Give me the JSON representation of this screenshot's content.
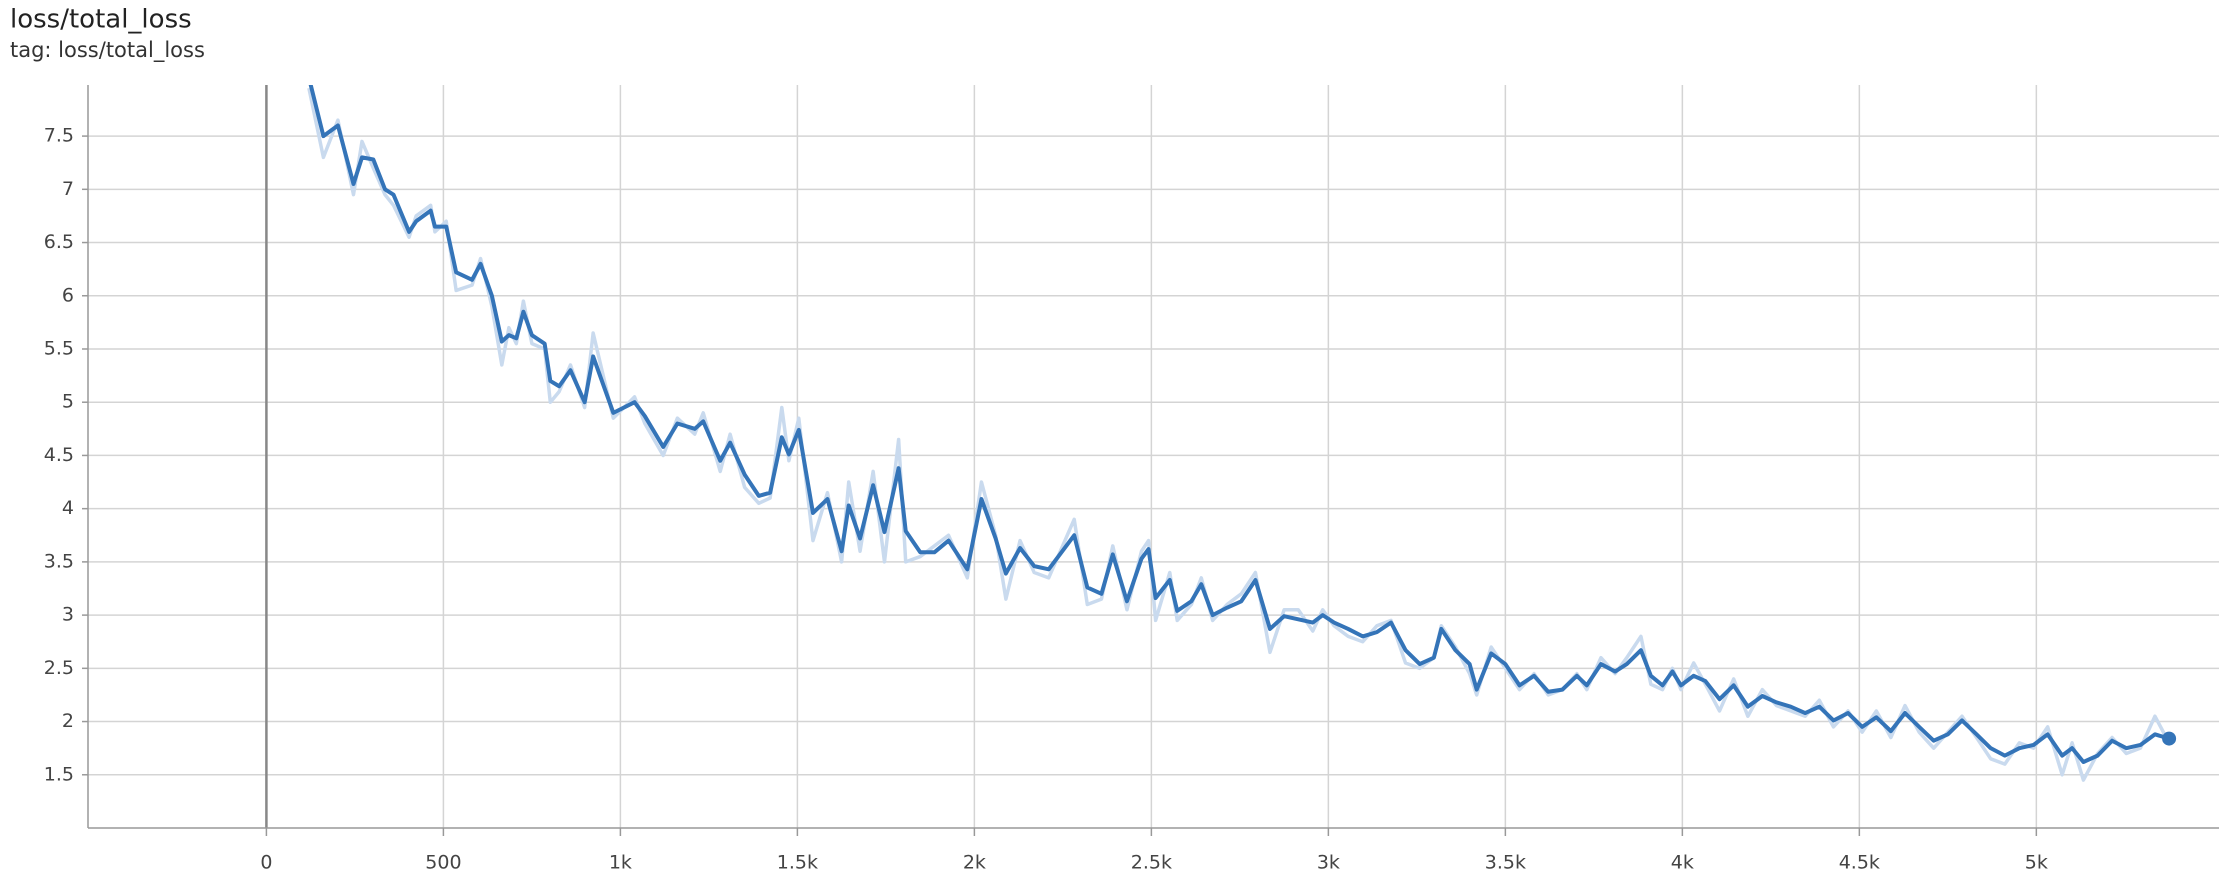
{
  "chart_data": {
    "type": "line",
    "title": "loss/total_loss",
    "subtitle": "tag: loss/total_loss",
    "x": [
      120,
      161,
      202,
      246,
      270,
      302,
      335,
      359,
      403,
      423,
      464,
      476,
      508,
      536,
      581,
      605,
      637,
      665,
      685,
      706,
      726,
      750,
      786,
      802,
      827,
      859,
      899,
      923,
      980,
      1040,
      1069,
      1121,
      1161,
      1210,
      1234,
      1282,
      1310,
      1351,
      1391,
      1423,
      1456,
      1476,
      1504,
      1544,
      1585,
      1625,
      1645,
      1677,
      1714,
      1746,
      1786,
      1806,
      1847,
      1887,
      1927,
      1980,
      2020,
      2060,
      2089,
      2129,
      2169,
      2210,
      2282,
      2319,
      2359,
      2391,
      2431,
      2472,
      2492,
      2512,
      2552,
      2573,
      2613,
      2641,
      2673,
      2714,
      2754,
      2794,
      2835,
      2875,
      2915,
      2956,
      2984,
      3016,
      3056,
      3097,
      3137,
      3177,
      3218,
      3258,
      3298,
      3319,
      3359,
      3399,
      3419,
      3460,
      3500,
      3540,
      3581,
      3621,
      3661,
      3702,
      3730,
      3770,
      3810,
      3843,
      3883,
      3911,
      3944,
      3972,
      3996,
      4032,
      4065,
      4105,
      4145,
      4185,
      4226,
      4266,
      4306,
      4347,
      4387,
      4427,
      4468,
      4508,
      4548,
      4589,
      4629,
      4669,
      4710,
      4750,
      4790,
      4831,
      4871,
      4911,
      4952,
      4992,
      5032,
      5073,
      5101,
      5133,
      5173,
      5214,
      5254,
      5294,
      5335,
      5375
    ],
    "series": [
      {
        "color": "#c9daee",
        "values": [
          7.95,
          7.3,
          7.65,
          6.95,
          7.45,
          7.2,
          6.95,
          6.85,
          6.55,
          6.75,
          6.85,
          6.6,
          6.7,
          6.05,
          6.1,
          6.35,
          5.9,
          5.35,
          5.7,
          5.55,
          5.95,
          5.55,
          5.5,
          5.0,
          5.1,
          5.35,
          4.95,
          5.65,
          4.85,
          5.05,
          4.8,
          4.5,
          4.85,
          4.7,
          4.9,
          4.35,
          4.7,
          4.2,
          4.05,
          4.1,
          4.95,
          4.45,
          4.85,
          3.7,
          4.15,
          3.5,
          4.25,
          3.6,
          4.35,
          3.5,
          4.65,
          3.5,
          3.55,
          3.65,
          3.75,
          3.35,
          4.25,
          3.75,
          3.15,
          3.7,
          3.4,
          3.35,
          3.9,
          3.1,
          3.15,
          3.65,
          3.05,
          3.6,
          3.7,
          2.95,
          3.4,
          2.95,
          3.1,
          3.35,
          2.95,
          3.1,
          3.2,
          3.4,
          2.65,
          3.05,
          3.05,
          2.85,
          3.05,
          2.9,
          2.8,
          2.75,
          2.9,
          2.95,
          2.55,
          2.5,
          2.6,
          2.9,
          2.7,
          2.45,
          2.25,
          2.7,
          2.5,
          2.3,
          2.45,
          2.25,
          2.3,
          2.45,
          2.3,
          2.6,
          2.45,
          2.6,
          2.8,
          2.35,
          2.3,
          2.5,
          2.3,
          2.55,
          2.35,
          2.1,
          2.4,
          2.05,
          2.3,
          2.15,
          2.1,
          2.05,
          2.2,
          1.95,
          2.1,
          1.9,
          2.1,
          1.85,
          2.15,
          1.9,
          1.75,
          1.9,
          2.05,
          1.85,
          1.65,
          1.6,
          1.8,
          1.75,
          1.95,
          1.5,
          1.8,
          1.45,
          1.7,
          1.85,
          1.7,
          1.75,
          2.05,
          1.8
        ]
      },
      {
        "color": "#3474b8",
        "values": [
          8.05,
          7.5,
          7.6,
          7.05,
          7.3,
          7.28,
          7.0,
          6.95,
          6.6,
          6.7,
          6.8,
          6.65,
          6.65,
          6.22,
          6.15,
          6.3,
          6.0,
          5.57,
          5.63,
          5.6,
          5.85,
          5.63,
          5.55,
          5.2,
          5.15,
          5.3,
          5.0,
          5.43,
          4.9,
          5.0,
          4.87,
          4.58,
          4.8,
          4.75,
          4.82,
          4.45,
          4.62,
          4.32,
          4.12,
          4.15,
          4.67,
          4.51,
          4.74,
          3.96,
          4.09,
          3.6,
          4.03,
          3.72,
          4.22,
          3.78,
          4.38,
          3.79,
          3.59,
          3.59,
          3.7,
          3.43,
          4.09,
          3.72,
          3.39,
          3.63,
          3.46,
          3.43,
          3.75,
          3.26,
          3.2,
          3.57,
          3.13,
          3.53,
          3.62,
          3.16,
          3.33,
          3.04,
          3.13,
          3.29,
          3.0,
          3.07,
          3.13,
          3.33,
          2.87,
          2.99,
          2.96,
          2.93,
          3.0,
          2.93,
          2.87,
          2.8,
          2.84,
          2.93,
          2.67,
          2.54,
          2.6,
          2.87,
          2.67,
          2.54,
          2.3,
          2.64,
          2.54,
          2.34,
          2.43,
          2.28,
          2.3,
          2.43,
          2.34,
          2.54,
          2.47,
          2.54,
          2.67,
          2.43,
          2.34,
          2.47,
          2.34,
          2.43,
          2.38,
          2.21,
          2.34,
          2.14,
          2.24,
          2.18,
          2.14,
          2.08,
          2.14,
          2.01,
          2.08,
          1.95,
          2.04,
          1.91,
          2.08,
          1.95,
          1.82,
          1.88,
          2.01,
          1.88,
          1.75,
          1.68,
          1.75,
          1.78,
          1.88,
          1.68,
          1.75,
          1.62,
          1.68,
          1.82,
          1.75,
          1.78,
          1.88,
          1.84
        ]
      }
    ],
    "xlim": [
      -504,
      5516
    ],
    "ylim": [
      1,
      7.98
    ],
    "xticks": [
      0,
      500,
      {
        "value": 1000,
        "label": "1k"
      },
      {
        "value": 1500,
        "label": "1.5k"
      },
      {
        "value": 2000,
        "label": "2k"
      },
      {
        "value": 2500,
        "label": "2.5k"
      },
      {
        "value": 3000,
        "label": "3k"
      },
      {
        "value": 3500,
        "label": "3.5k"
      },
      {
        "value": 4000,
        "label": "4k"
      },
      {
        "value": 4500,
        "label": "4.5k"
      },
      {
        "value": 5000,
        "label": "5k"
      }
    ],
    "yticks": [
      1.5,
      2,
      2.5,
      3,
      3.5,
      4,
      4.5,
      5,
      5.5,
      6,
      6.5,
      7,
      7.5
    ],
    "grid": true
  }
}
